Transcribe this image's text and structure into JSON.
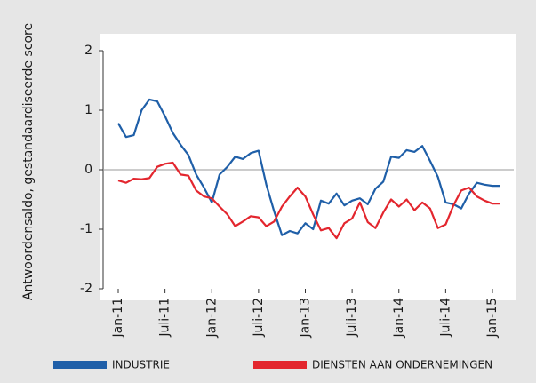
{
  "chart_data": {
    "type": "line",
    "y_label": "Antwoordensaldo, gestandaardiseerde score",
    "categories": [
      "Jan-11",
      null,
      null,
      null,
      null,
      null,
      "Juli-11",
      null,
      null,
      null,
      null,
      null,
      "Jan-12",
      null,
      null,
      null,
      null,
      null,
      "Juli-12",
      null,
      null,
      null,
      null,
      null,
      "Jan-13",
      null,
      null,
      null,
      null,
      null,
      "Juli-13",
      null,
      null,
      null,
      null,
      null,
      "Jan-14",
      null,
      null,
      null,
      null,
      null,
      "Juli-14",
      null,
      null,
      null,
      null,
      null,
      "Jan-15",
      null
    ],
    "series": [
      {
        "name": "INDUSTRIE",
        "color": "#1f5fa8",
        "values": [
          0.78,
          0.55,
          0.58,
          1.0,
          1.18,
          1.15,
          0.9,
          0.62,
          0.42,
          0.25,
          -0.08,
          -0.3,
          -0.55,
          -0.08,
          0.05,
          0.22,
          0.18,
          0.28,
          0.32,
          -0.25,
          -0.7,
          -1.1,
          -1.03,
          -1.07,
          -0.9,
          -1.0,
          -0.52,
          -0.57,
          -0.4,
          -0.6,
          -0.52,
          -0.48,
          -0.58,
          -0.32,
          -0.2,
          0.22,
          0.2,
          0.33,
          0.3,
          0.4,
          0.15,
          -0.12,
          -0.55,
          -0.58,
          -0.65,
          -0.4,
          -0.22,
          -0.25,
          -0.27,
          -0.27
        ]
      },
      {
        "name": "DIENSTEN AAN ONDERNEMINGEN",
        "color": "#e3262e",
        "values": [
          -0.18,
          -0.22,
          -0.15,
          -0.16,
          -0.14,
          0.05,
          0.1,
          0.12,
          -0.08,
          -0.1,
          -0.35,
          -0.45,
          -0.48,
          -0.62,
          -0.75,
          -0.95,
          -0.87,
          -0.78,
          -0.8,
          -0.95,
          -0.87,
          -0.62,
          -0.45,
          -0.3,
          -0.45,
          -0.75,
          -1.02,
          -0.98,
          -1.15,
          -0.9,
          -0.82,
          -0.55,
          -0.88,
          -0.98,
          -0.72,
          -0.5,
          -0.62,
          -0.5,
          -0.68,
          -0.55,
          -0.65,
          -0.98,
          -0.92,
          -0.6,
          -0.35,
          -0.3,
          -0.45,
          -0.52,
          -0.57,
          -0.57
        ]
      }
    ],
    "ylim": [
      -2,
      2
    ],
    "yticks": [
      -2,
      -1,
      0,
      1,
      2
    ],
    "grid": false
  }
}
